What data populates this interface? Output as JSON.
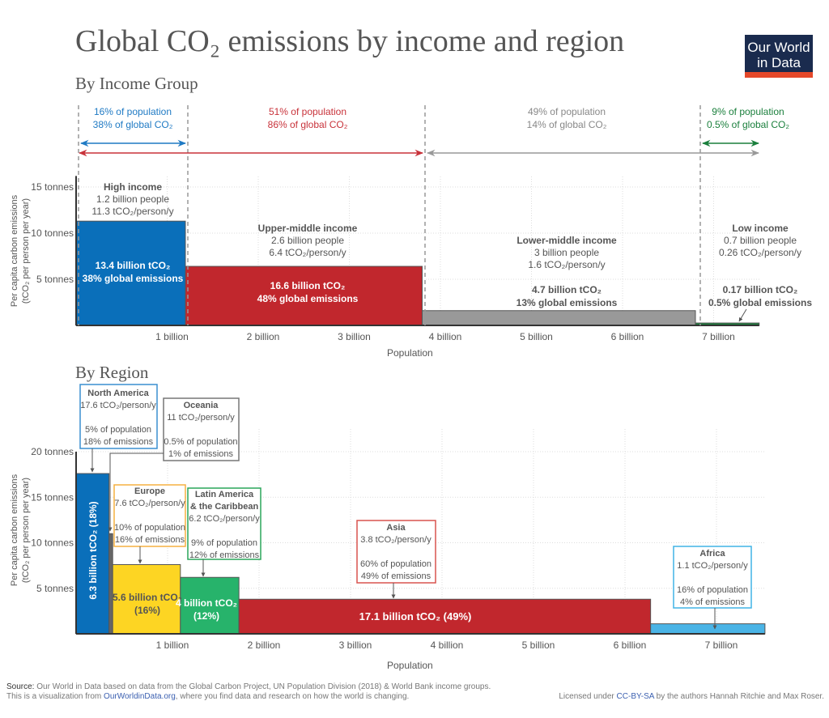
{
  "title": "Global CO₂ emissions by income and region",
  "logo": {
    "line1": "Our World",
    "line2": "in Data",
    "bg": "#1a2b4e",
    "accent": "#e5482a"
  },
  "footer": {
    "source_label": "Source:",
    "source_text": " Our World in Data based on data from the Global Carbon Project, UN Population Division (2018) & World Bank income groups.",
    "viz_prefix": "This is a visualization from ",
    "viz_link": "OurWorldinData.org",
    "viz_suffix": ", where you find data and research on how the world is changing.",
    "license_prefix": "Licensed under ",
    "license_link": "CC-BY-SA",
    "license_suffix": " by the authors Hannah Ritchie and Max Roser."
  },
  "chart_data": [
    {
      "type": "bar",
      "subtitle": "By Income Group",
      "xlabel": "Population",
      "ylabel": [
        "Per capita carbon emissions",
        "(tCO₂ per person per year)"
      ],
      "x_ticks": [
        "1 billion",
        "2 billion",
        "3 billion",
        "4 billion",
        "5 billion",
        "6 billion",
        "7 billion"
      ],
      "x_tick_values": [
        1,
        2,
        3,
        4,
        5,
        6,
        7
      ],
      "y_ticks": [
        "5 tonnes",
        "10 tonnes",
        "15 tonnes"
      ],
      "y_tick_values": [
        5,
        10,
        15
      ],
      "ylim": [
        0,
        16.2
      ],
      "grid": true,
      "series": [
        {
          "name": "High income",
          "population_billion": 1.2,
          "per_capita": 11.3,
          "color": "#0a6fba",
          "people": "1.2 billion people",
          "rate": "11.3 tCO₂/person/y",
          "total": "13.4 billion tCO₂",
          "share": "38% global emissions",
          "pop_share": "16% of population",
          "co2_share": "38% of global CO₂",
          "bracket_color": "#1f7ac4"
        },
        {
          "name": "Upper-middle income",
          "population_billion": 2.6,
          "per_capita": 6.4,
          "color": "#c1272d",
          "people": "2.6 billion people",
          "rate": "6.4 tCO₂/person/y",
          "total": "16.6 billion tCO₂",
          "share": "48% global emissions",
          "pop_share": "51% of population",
          "co2_share": "86% of global CO₂",
          "bracket_color": "#c8323a"
        },
        {
          "name": "Lower-middle income",
          "population_billion": 3.0,
          "per_capita": 1.6,
          "color": "#999999",
          "people": "3 billion people",
          "rate": "1.6 tCO₂/person/y",
          "total": "4.7 billion tCO₂",
          "share": "13% global emissions",
          "pop_share": "49% of population",
          "co2_share": "14% of global CO₂",
          "bracket_color": "#888888"
        },
        {
          "name": "Low income",
          "population_billion": 0.7,
          "per_capita": 0.26,
          "color": "#1a7f3c",
          "people": "0.7 billion people",
          "rate": "0.26 tCO₂/person/y",
          "total": "0.17 billion tCO₂",
          "share": "0.5% global emissions",
          "pop_share": "9% of population",
          "co2_share": "0.5% of global CO₂",
          "bracket_color": "#1a7f3c"
        }
      ]
    },
    {
      "type": "bar",
      "subtitle": "By Region",
      "xlabel": "Population",
      "ylabel": [
        "Per capita carbon emissions",
        "(tCO₂ per person per year)"
      ],
      "x_ticks": [
        "1 billion",
        "2 billion",
        "3 billion",
        "4 billion",
        "5 billion",
        "6 billion",
        "7 billion"
      ],
      "x_tick_values": [
        1,
        2,
        3,
        4,
        5,
        6,
        7
      ],
      "y_ticks": [
        "5 tonnes",
        "10 tonnes",
        "15 tonnes",
        "20 tonnes"
      ],
      "y_tick_values": [
        5,
        10,
        15,
        20
      ],
      "ylim": [
        0,
        20
      ],
      "grid": true,
      "series": [
        {
          "name": "North America",
          "population_billion": 0.36,
          "per_capita": 17.6,
          "color": "#0a6fba",
          "box_color": "#3a8fd0",
          "rate": "17.6 tCO₂/person/y",
          "pop_share": "5% of population",
          "emis_share": "18% of emissions",
          "bar_label": "6.3 billion tCO₂ (18%)"
        },
        {
          "name": "Oceania",
          "population_billion": 0.04,
          "per_capita": 11,
          "color": "#666666",
          "box_color": "#777777",
          "rate": "11 tCO₂/person/y",
          "pop_share": "0.5% of population",
          "emis_share": "1% of emissions"
        },
        {
          "name": "Europe",
          "population_billion": 0.74,
          "per_capita": 7.6,
          "color": "#fdd523",
          "box_color": "#f5b041",
          "rate": "7.6 tCO₂/person/y",
          "pop_share": "10% of population",
          "emis_share": "16% of emissions",
          "bar_label": "5.6 billion tCO₂",
          "bar_label2": "(16%)"
        },
        {
          "name": "Latin America",
          "name2": "& the Caribbean",
          "population_billion": 0.64,
          "per_capita": 6.2,
          "color": "#27b36b",
          "box_color": "#2aa55a",
          "rate": "6.2 tCO₂/person/y",
          "pop_share": "9% of population",
          "emis_share": "12% of emissions",
          "bar_label": "4 billion tCO₂",
          "bar_label2": "(12%)"
        },
        {
          "name": "Asia",
          "population_billion": 4.5,
          "per_capita": 3.8,
          "color": "#c1272d",
          "box_color": "#d9534f",
          "rate": "3.8 tCO₂/person/y",
          "pop_share": "60% of population",
          "emis_share": "49% of emissions",
          "bar_label": "17.1 billion tCO₂ (49%)"
        },
        {
          "name": "Africa",
          "population_billion": 1.25,
          "per_capita": 1.1,
          "color": "#4ab4e6",
          "box_color": "#40b4e5",
          "rate": "1.1 tCO₂/person/y",
          "pop_share": "16% of population",
          "emis_share": "4% of emissions"
        }
      ]
    }
  ]
}
